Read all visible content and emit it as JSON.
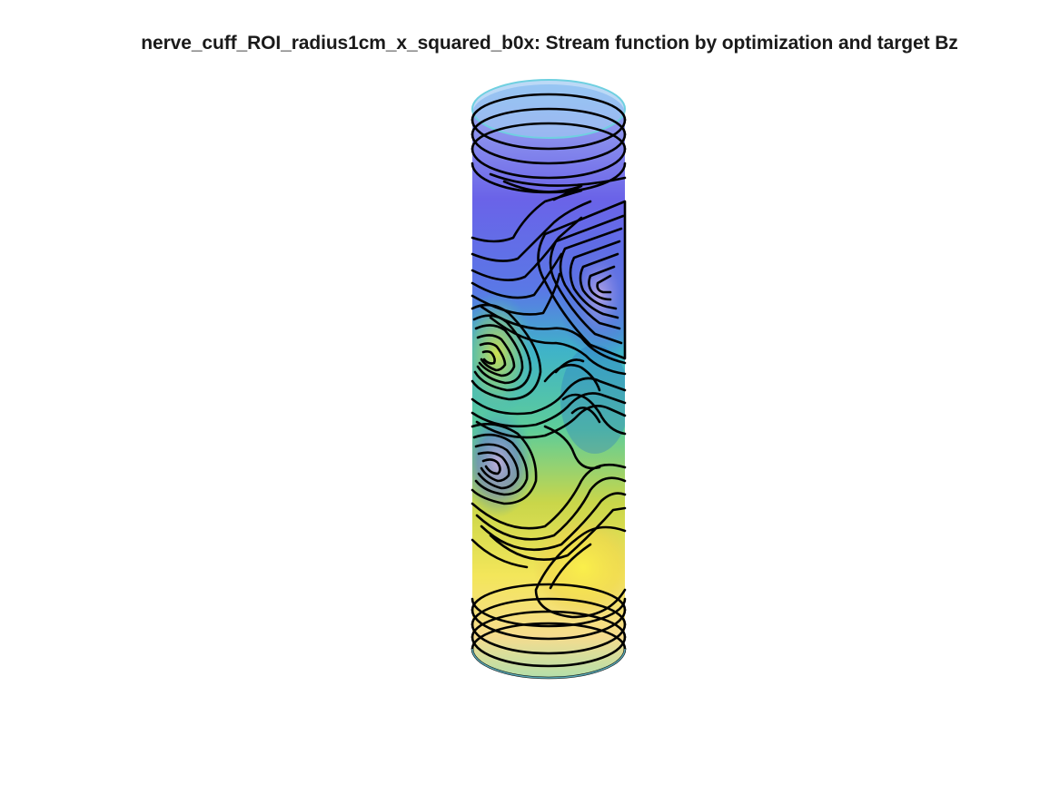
{
  "figure": {
    "title": "nerve_cuff_ROI_radius1cm_x_squared_b0x: Stream function by optimization and target Bz",
    "colormap": [
      "#3e26a8",
      "#4850ec",
      "#2d8cf5",
      "#18b9c4",
      "#49c98a",
      "#b8c33a",
      "#f5e52a"
    ],
    "contour_color": "#000000",
    "surface_alpha": 0.55
  }
}
